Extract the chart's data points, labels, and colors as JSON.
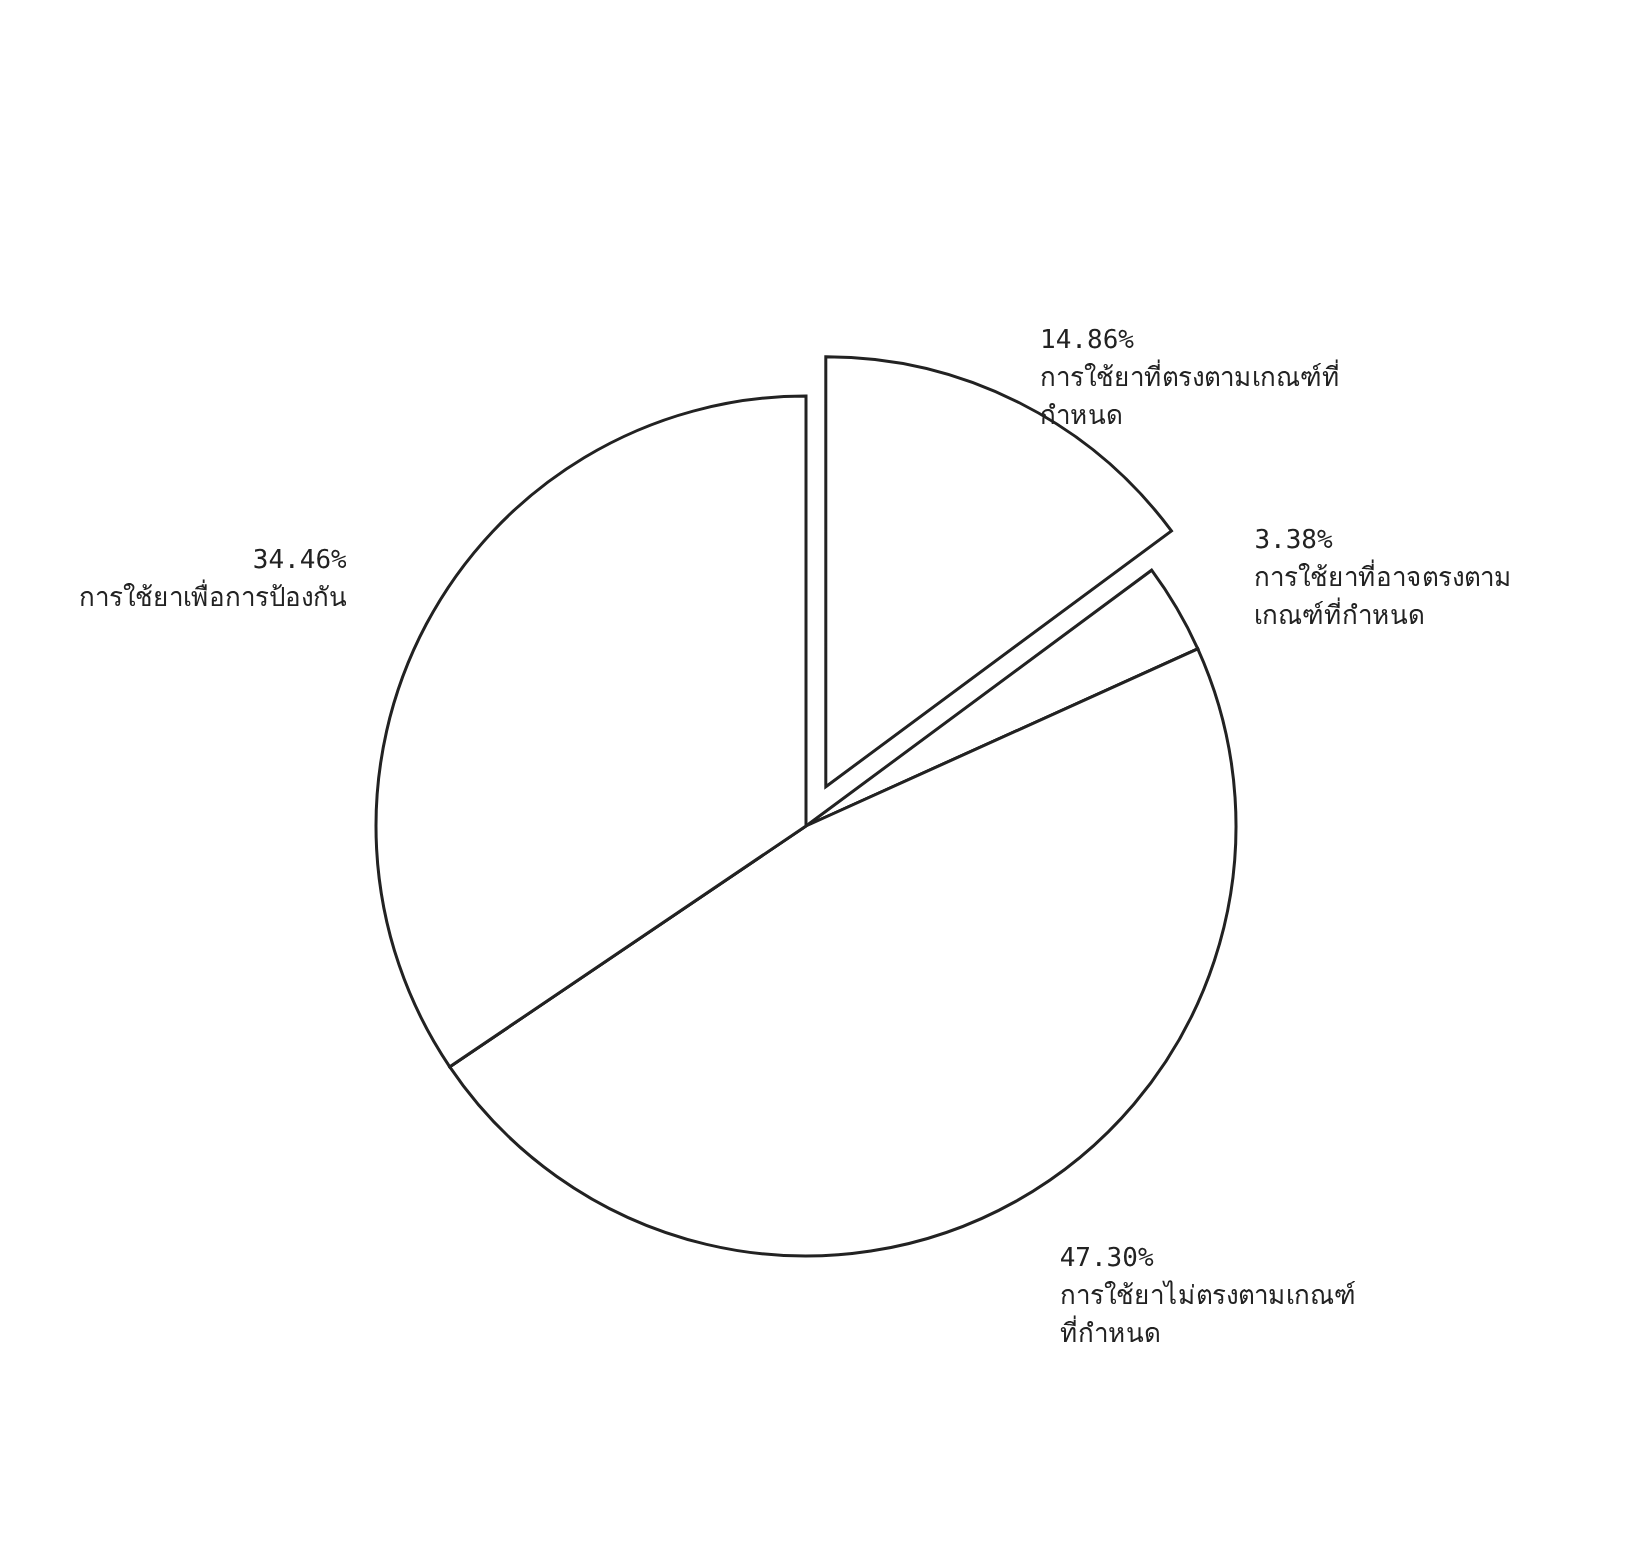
{
  "chart_data": {
    "type": "pie",
    "categories": [
      "การใช้ยาที่ตรงตามเกณฑ์ที่กำหนด",
      "การใช้ยาที่อาจตรงตามเกณฑ์ที่กำหนด",
      "การใช้ยาไม่ตรงตามเกณฑ์ที่กำหนด",
      "การใช้ยาเพื่อการป้องกัน"
    ],
    "values": [
      14.86,
      3.38,
      47.3,
      34.46
    ],
    "value_labels": [
      "14.86%",
      "3.38%",
      "47.30%",
      "34.46%"
    ],
    "colors": [
      "#ffffff",
      "#ffffff",
      "#ffffff",
      "#ffffff"
    ]
  }
}
